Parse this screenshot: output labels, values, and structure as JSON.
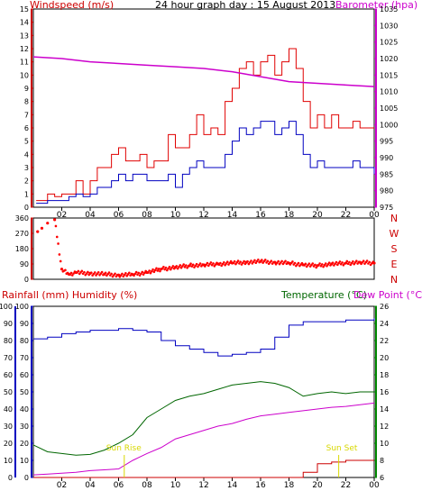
{
  "top": {
    "left_title": "Windspeed (m/s)",
    "title": "24 hour graph day : 15 August 2013",
    "right_title": "Barometer (hpa)"
  },
  "wind_dir_labels": [
    "N",
    "W",
    "S",
    "E",
    "N"
  ],
  "bottom": {
    "left_title": "Rainfall (mm)  Humidity (%)",
    "right_title": "Temperature (°C)",
    "right_title2": "Dew Point (°C)",
    "sunrise_label": "Sun Rise",
    "sunset_label": "Sun Set"
  },
  "colors": {
    "wind_gust": "#e00000",
    "wind_avg": "#0000c0",
    "barometer": "#cc00cc",
    "direction": "#ff0000",
    "humidity": "#0000c0",
    "temperature": "#006600",
    "dewpoint": "#cc00cc",
    "rainfall": "#cc0000",
    "sun_marker": "#d8d800",
    "axis_left_top": "#cc0000",
    "axis_right_top": "#cc00cc",
    "axis_left_bottom": "#0000c0",
    "axis_right_bottom": "#008800"
  },
  "chart_data": [
    {
      "type": "line",
      "panel": "wind-barometer",
      "x_ticks": [
        "02",
        "04",
        "06",
        "08",
        "10",
        "12",
        "14",
        "16",
        "18",
        "20",
        "22",
        "00"
      ],
      "ylim_left": [
        0,
        15
      ],
      "yticks_left": [
        "0",
        "1",
        "2",
        "3",
        "4",
        "5",
        "6",
        "7",
        "8",
        "9",
        "10",
        "11",
        "12",
        "13",
        "14",
        "15"
      ],
      "ylim_right": [
        975,
        1035
      ],
      "yticks_right": [
        "975",
        "980",
        "985",
        "990",
        "995",
        "1000",
        "1005",
        "1010",
        "1015",
        "1020",
        "1025",
        "1030",
        "1035"
      ],
      "series": [
        {
          "axis": "left",
          "key": "gust",
          "x": [
            0.2,
            1,
            1.5,
            2,
            2.5,
            3,
            3.5,
            4,
            4.5,
            5,
            5.5,
            6,
            6.5,
            7,
            7.5,
            8,
            8.5,
            9,
            9.5,
            10,
            10.5,
            11,
            11.5,
            12,
            12.5,
            13,
            13.5,
            14,
            14.5,
            15,
            15.5,
            16,
            16.5,
            17,
            17.5,
            18,
            18.5,
            19,
            19.5,
            20,
            20.5,
            21,
            21.5,
            22,
            22.5,
            23,
            23.5,
            24
          ],
          "values": [
            0.5,
            1,
            0.8,
            1,
            1,
            2,
            1,
            2,
            3,
            3,
            4,
            4.5,
            3.5,
            3.5,
            4,
            3,
            3.5,
            3.5,
            5.5,
            4.5,
            4.5,
            5.5,
            7,
            5.5,
            6,
            5.5,
            8,
            9,
            10.5,
            11,
            10,
            11,
            11.5,
            10,
            11,
            12,
            10.5,
            8,
            6,
            7,
            6,
            7,
            6,
            6,
            6.5,
            6,
            6,
            6
          ]
        },
        {
          "axis": "left",
          "key": "average",
          "x": [
            0.2,
            1,
            1.5,
            2,
            2.5,
            3,
            3.5,
            4,
            4.5,
            5,
            5.5,
            6,
            6.5,
            7,
            7.5,
            8,
            8.5,
            9,
            9.5,
            10,
            10.5,
            11,
            11.5,
            12,
            12.5,
            13,
            13.5,
            14,
            14.5,
            15,
            15.5,
            16,
            16.5,
            17,
            17.5,
            18,
            18.5,
            19,
            19.5,
            20,
            20.5,
            21,
            21.5,
            22,
            22.5,
            23,
            23.5,
            24
          ],
          "values": [
            0.3,
            0.5,
            0.5,
            0.5,
            0.8,
            1,
            0.8,
            1,
            1.5,
            1.5,
            2,
            2.5,
            2,
            2.5,
            2.5,
            2,
            2,
            2,
            2.5,
            1.5,
            2.5,
            3,
            3.5,
            3,
            3,
            3,
            4,
            5,
            6,
            5.5,
            6,
            6.5,
            6.5,
            5.5,
            6,
            6.5,
            5.5,
            4,
            3,
            3.5,
            3,
            3,
            3,
            3,
            3.5,
            3,
            3,
            2.5
          ]
        },
        {
          "axis": "right",
          "key": "barometer",
          "x": [
            0,
            2,
            4,
            6,
            8,
            10,
            12,
            14,
            16,
            18,
            20,
            22,
            24
          ],
          "values": [
            1020.5,
            1020,
            1019,
            1018.5,
            1018,
            1017.5,
            1017,
            1016,
            1014.5,
            1013,
            1012.5,
            1012,
            1011.5
          ]
        }
      ]
    },
    {
      "type": "scatter",
      "panel": "wind-direction",
      "ylim": [
        0,
        360
      ],
      "yticks": [
        "0",
        "90",
        "180",
        "270",
        "360"
      ],
      "x": [
        0.3,
        0.6,
        1,
        1.5,
        2,
        2.5,
        3,
        4,
        5,
        6,
        7,
        8,
        9,
        10,
        11,
        12,
        13,
        14,
        15,
        16,
        17,
        18,
        19,
        20,
        21,
        22,
        23,
        24
      ],
      "values": [
        280,
        300,
        330,
        350,
        60,
        30,
        40,
        35,
        30,
        25,
        28,
        40,
        60,
        70,
        80,
        85,
        90,
        95,
        100,
        105,
        100,
        95,
        85,
        80,
        90,
        95,
        100,
        95
      ]
    },
    {
      "type": "line",
      "panel": "temperature-humidity",
      "x_ticks": [
        "02",
        "04",
        "06",
        "08",
        "10",
        "12",
        "14",
        "16",
        "18",
        "20",
        "22",
        "00"
      ],
      "ylim_left": [
        0,
        100
      ],
      "yticks_left": [
        "0",
        "10",
        "20",
        "30",
        "40",
        "50",
        "60",
        "70",
        "80",
        "90",
        "100"
      ],
      "ylim_right": [
        6,
        26
      ],
      "yticks_right": [
        "6",
        "8",
        "10",
        "12",
        "14",
        "16",
        "18",
        "20",
        "22",
        "24",
        "26"
      ],
      "series": [
        {
          "axis": "left",
          "key": "humidity",
          "x": [
            0,
            1,
            2,
            3,
            4,
            5,
            6,
            7,
            8,
            9,
            10,
            11,
            12,
            13,
            14,
            15,
            16,
            17,
            18,
            19,
            20,
            21,
            22,
            23,
            24
          ],
          "values": [
            81,
            82,
            84,
            85,
            86,
            86,
            87,
            86,
            85,
            80,
            77,
            75,
            73,
            71,
            72,
            73,
            75,
            82,
            89,
            91,
            91,
            91,
            92,
            92,
            93
          ]
        },
        {
          "axis": "left",
          "key": "rainfall",
          "x": [
            0,
            18,
            19,
            20,
            21,
            22,
            23,
            24
          ],
          "values": [
            0,
            0,
            3,
            8,
            9,
            10,
            10,
            10
          ]
        },
        {
          "axis": "right",
          "key": "temperature",
          "x": [
            0,
            1,
            2,
            3,
            4,
            5,
            6,
            7,
            8,
            9,
            10,
            11,
            12,
            13,
            14,
            15,
            16,
            17,
            18,
            19,
            20,
            21,
            22,
            23,
            24
          ],
          "values": [
            9.8,
            9,
            8.8,
            8.6,
            8.7,
            9.2,
            10,
            11,
            13,
            14,
            15,
            15.5,
            15.8,
            16.3,
            16.8,
            17,
            17.2,
            17,
            16.5,
            15.5,
            15.8,
            16,
            15.8,
            16,
            16
          ]
        },
        {
          "axis": "right",
          "key": "dewpoint",
          "x": [
            0,
            1,
            2,
            3,
            4,
            5,
            6,
            7,
            8,
            9,
            10,
            11,
            12,
            13,
            14,
            15,
            16,
            17,
            18,
            19,
            20,
            21,
            22,
            23,
            24
          ],
          "values": [
            6.3,
            6.4,
            6.5,
            6.6,
            6.8,
            6.9,
            7,
            8,
            8.8,
            9.5,
            10.5,
            11,
            11.5,
            12,
            12.3,
            12.8,
            13.2,
            13.4,
            13.6,
            13.8,
            14,
            14.2,
            14.3,
            14.5,
            14.7
          ]
        }
      ]
    }
  ]
}
